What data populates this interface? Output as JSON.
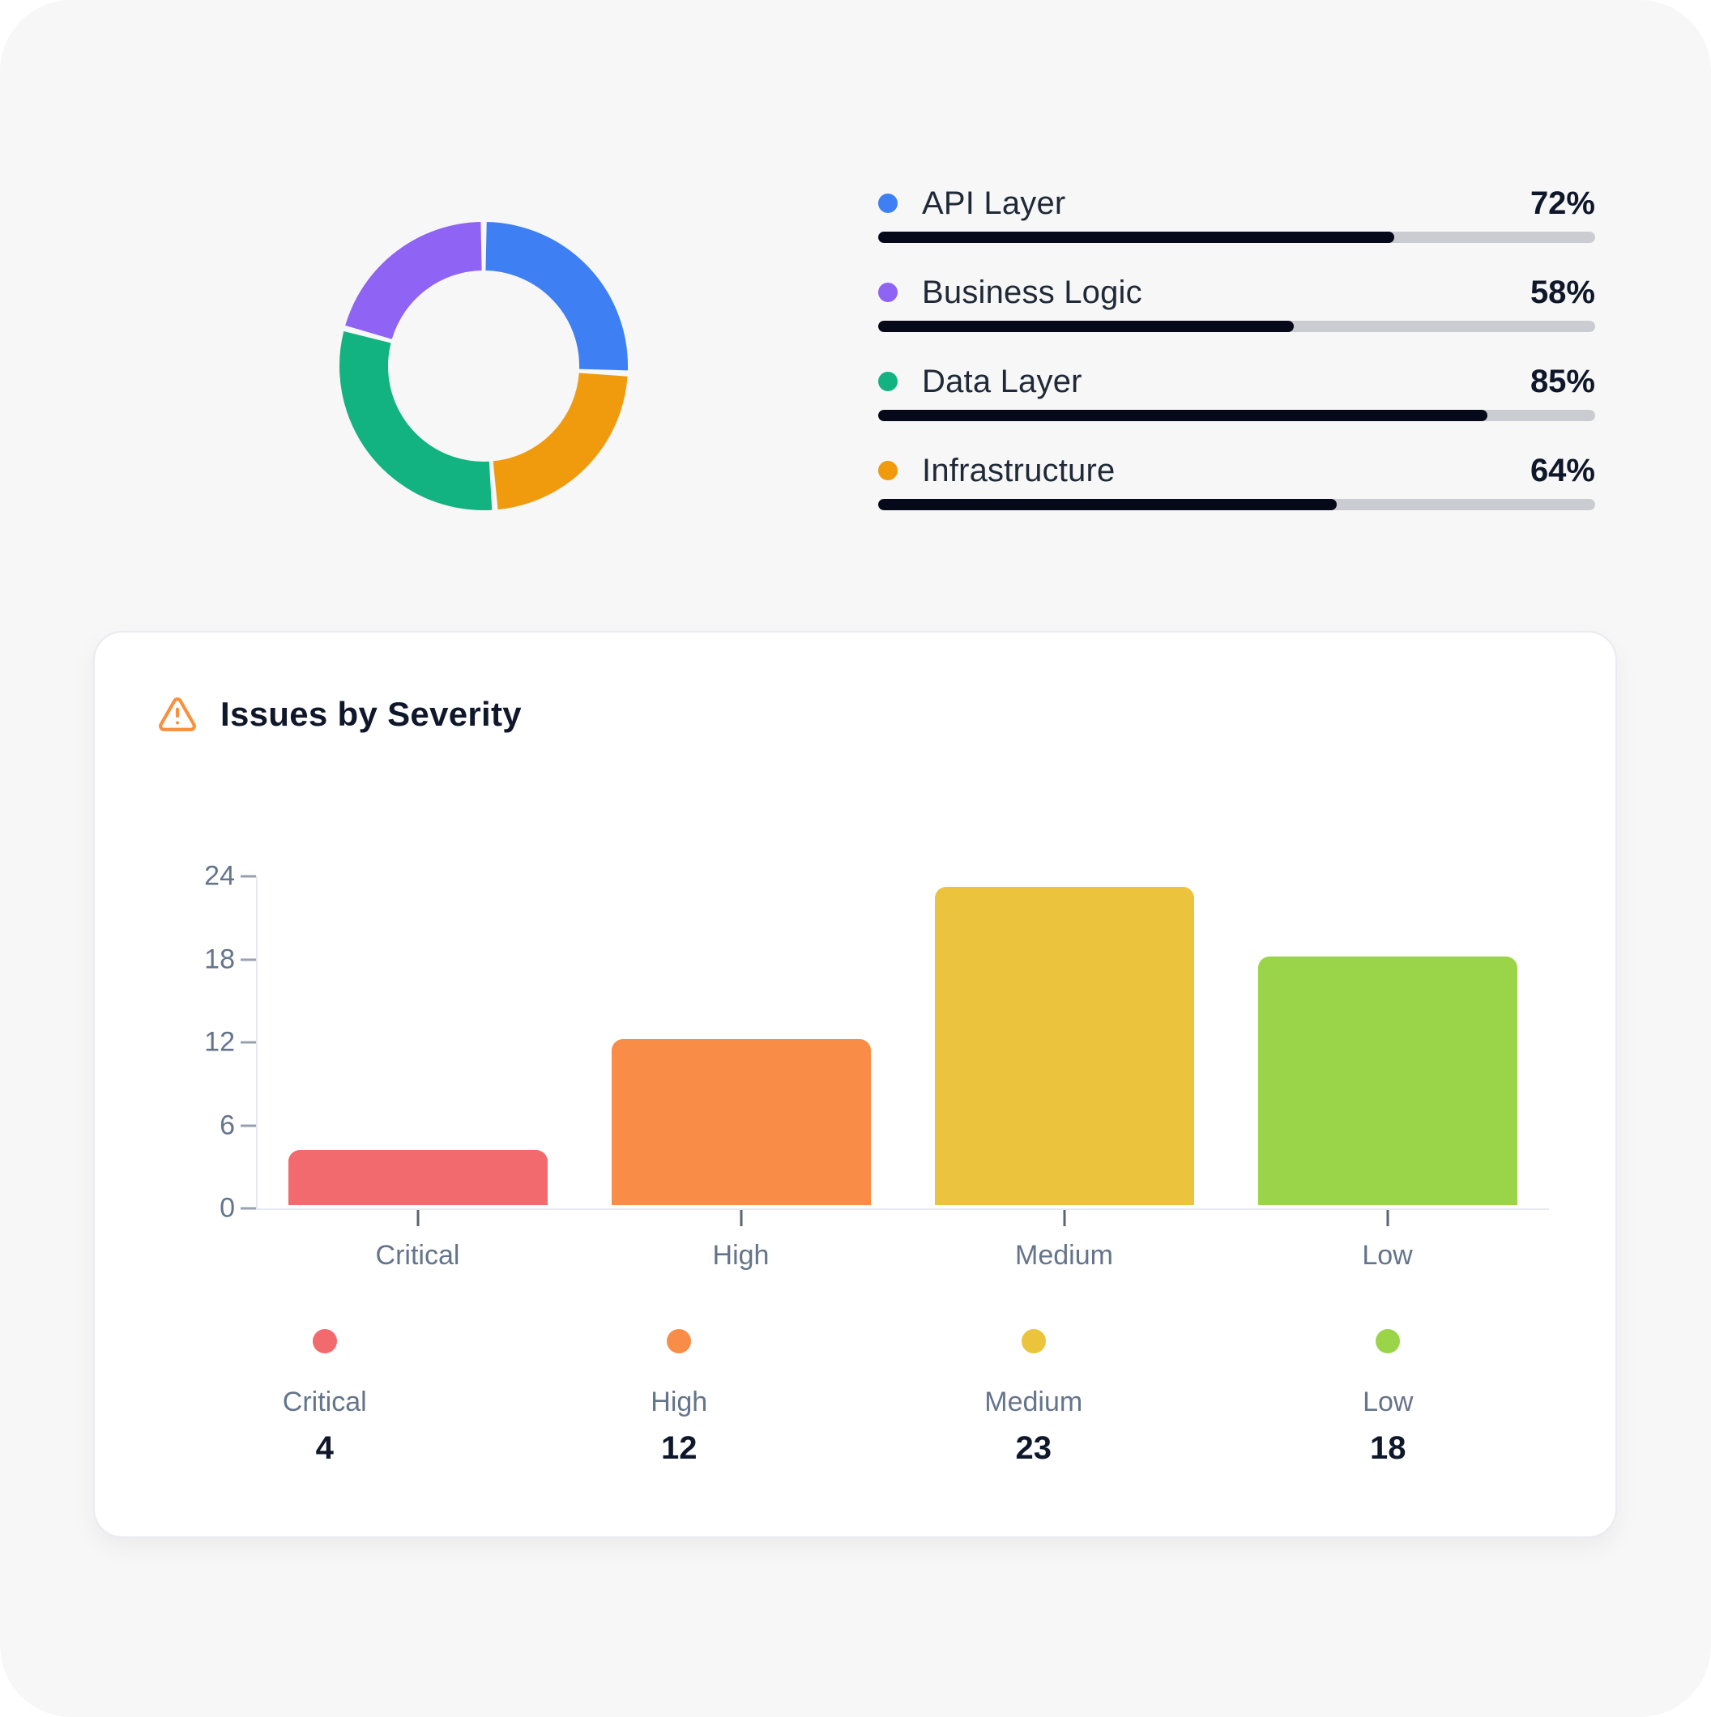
{
  "surface": {
    "background": "#f7f7f7"
  },
  "architecture": {
    "legend": {
      "rows": [
        {
          "label": "API Layer",
          "percent_text": "72%",
          "value": 72,
          "dot_color": "#3E80F4"
        },
        {
          "label": "Business Logic",
          "percent_text": "58%",
          "value": 58,
          "dot_color": "#8F63F3"
        },
        {
          "label": "Data Layer",
          "percent_text": "85%",
          "value": 85,
          "dot_color": "#13B381"
        },
        {
          "label": "Infrastructure",
          "percent_text": "64%",
          "value": 64,
          "dot_color": "#F09A0E"
        }
      ],
      "bar_fill_color": "#06091A",
      "bar_track_color": "#CBCCD2"
    }
  },
  "severity": {
    "title": "Issues by Severity",
    "icon": "warning-triangle-icon",
    "icon_color": "#F8913E",
    "legend": [
      {
        "label": "Critical",
        "count": "4",
        "color": "#F2696E"
      },
      {
        "label": "High",
        "count": "12",
        "color": "#F98D48"
      },
      {
        "label": "Medium",
        "count": "23",
        "color": "#ECC33D"
      },
      {
        "label": "Low",
        "count": "18",
        "color": "#9AD549"
      }
    ]
  },
  "chart_data": [
    {
      "type": "pie",
      "subtype": "donut",
      "labels": [
        "API Layer",
        "Business Logic",
        "Data Layer",
        "Infrastructure"
      ],
      "values": [
        72,
        58,
        85,
        64
      ],
      "colors": [
        "#3E80F4",
        "#8F63F3",
        "#13B381",
        "#F09A0E"
      ],
      "clockwise_from_top": [
        "API Layer",
        "Infrastructure",
        "Data Layer",
        "Business Logic"
      ],
      "inner_radius_ratio": 0.66,
      "pad_angle_deg": 2.4,
      "legend_position": "right",
      "legend_style": "progress-bars with percent"
    },
    {
      "type": "bar",
      "title": "Issues by Severity",
      "categories": [
        "Critical",
        "High",
        "Medium",
        "Low"
      ],
      "values": [
        4,
        12,
        23,
        18
      ],
      "colors": [
        "#F2696E",
        "#F98D48",
        "#ECC33D",
        "#9AD549"
      ],
      "xlabel": "",
      "ylabel": "",
      "ylim": [
        0,
        24
      ],
      "yticks": [
        0,
        6,
        12,
        18,
        24
      ],
      "grid": false,
      "legend_position": "bottom"
    }
  ]
}
